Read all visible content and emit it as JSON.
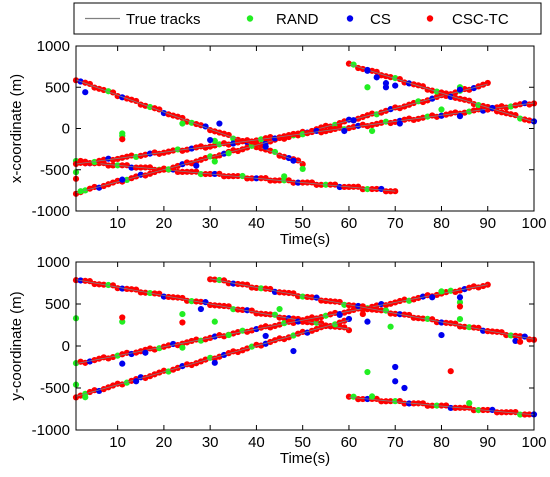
{
  "legend": {
    "entries": [
      {
        "label": "True tracks",
        "marker": "line",
        "color": "#808080"
      },
      {
        "label": "RAND",
        "marker": "dot",
        "color": "#22ee22"
      },
      {
        "label": "CS",
        "marker": "dot",
        "color": "#0000ee"
      },
      {
        "label": "CSC-TC",
        "marker": "dot",
        "color": "#ff0000"
      }
    ]
  },
  "chart_data": [
    {
      "type": "scatter",
      "xlabel": "Time(s)",
      "ylabel": "x-coordinate (m)",
      "xlim": [
        1,
        100
      ],
      "ylim": [
        -1000,
        1000
      ],
      "xticks": [
        10,
        20,
        30,
        40,
        50,
        60,
        70,
        80,
        90,
        100
      ],
      "yticks": [
        -1000,
        -500,
        0,
        500,
        1000
      ],
      "grid": false,
      "tracks": [
        {
          "t": [
            1,
            50
          ],
          "v": [
            590,
            -420
          ]
        },
        {
          "t": [
            1,
            70
          ],
          "v": [
            -400,
            -760
          ]
        },
        {
          "t": [
            1,
            90
          ],
          "v": [
            -780,
            540
          ]
        },
        {
          "t": [
            1,
            100
          ],
          "v": [
            -430,
            310
          ]
        },
        {
          "t": [
            60,
            100
          ],
          "v": [
            780,
            80
          ]
        }
      ],
      "series": [
        {
          "name": "RAND",
          "points": [
            [
              1,
              -530
            ],
            [
              2,
              -760
            ],
            [
              11,
              -60
            ],
            [
              11,
              -90
            ],
            [
              24,
              60
            ],
            [
              31,
              -150
            ],
            [
              31,
              -400
            ],
            [
              34,
              -300
            ],
            [
              46,
              -580
            ],
            [
              50,
              -490
            ],
            [
              64,
              500
            ],
            [
              65,
              -30
            ],
            [
              80,
              230
            ],
            [
              84,
              500
            ]
          ]
        },
        {
          "name": "CS",
          "points": [
            [
              3,
              440
            ],
            [
              11,
              -620
            ],
            [
              27,
              -450
            ],
            [
              30,
              -140
            ],
            [
              32,
              60
            ],
            [
              42,
              -220
            ],
            [
              48,
              -390
            ],
            [
              59,
              -30
            ],
            [
              61,
              100
            ],
            [
              64,
              700
            ],
            [
              66,
              620
            ],
            [
              68,
              550
            ],
            [
              68,
              500
            ],
            [
              70,
              520
            ],
            [
              71,
              60
            ],
            [
              84,
              470
            ],
            [
              84,
              150
            ]
          ]
        },
        {
          "name": "CSC-TC",
          "points": [
            [
              1,
              -610
            ],
            [
              11,
              -130
            ]
          ]
        }
      ]
    },
    {
      "type": "scatter",
      "xlabel": "Time(s)",
      "ylabel": "y-coordinate (m)",
      "xlim": [
        1,
        100
      ],
      "ylim": [
        -1000,
        1000
      ],
      "xticks": [
        10,
        20,
        30,
        40,
        50,
        60,
        70,
        80,
        90,
        100
      ],
      "yticks": [
        -1000,
        -500,
        0,
        500,
        1000
      ],
      "grid": false,
      "tracks": [
        {
          "t": [
            1,
            60
          ],
          "v": [
            790,
            200
          ]
        },
        {
          "t": [
            1,
            90
          ],
          "v": [
            -210,
            730
          ]
        },
        {
          "t": [
            1,
            60
          ],
          "v": [
            -600,
            310
          ]
        },
        {
          "t": [
            30,
            100
          ],
          "v": [
            800,
            80
          ]
        },
        {
          "t": [
            60,
            100
          ],
          "v": [
            -610,
            -820
          ]
        }
      ],
      "series": [
        {
          "name": "RAND",
          "points": [
            [
              1,
              330
            ],
            [
              1,
              -460
            ],
            [
              3,
              -610
            ],
            [
              11,
              290
            ],
            [
              24,
              380
            ],
            [
              24,
              -20
            ],
            [
              31,
              290
            ],
            [
              34,
              130
            ],
            [
              45,
              440
            ],
            [
              64,
              -310
            ],
            [
              65,
              -600
            ],
            [
              69,
              230
            ],
            [
              80,
              650
            ],
            [
              84,
              520
            ],
            [
              84,
              320
            ],
            [
              86,
              -680
            ]
          ]
        },
        {
          "name": "CS",
          "points": [
            [
              11,
              -210
            ],
            [
              14,
              -420
            ],
            [
              16,
              -80
            ],
            [
              28,
              440
            ],
            [
              31,
              -200
            ],
            [
              42,
              120
            ],
            [
              48,
              -60
            ],
            [
              58,
              370
            ],
            [
              64,
              290
            ],
            [
              70,
              -250
            ],
            [
              70,
              -420
            ],
            [
              72,
              -500
            ],
            [
              78,
              580
            ],
            [
              80,
              130
            ],
            [
              84,
              580
            ],
            [
              96,
              60
            ]
          ]
        },
        {
          "name": "CSC-TC",
          "points": [
            [
              11,
              340
            ],
            [
              24,
              280
            ],
            [
              63,
              380
            ],
            [
              82,
              -300
            ],
            [
              84,
              470
            ],
            [
              97,
              50
            ]
          ]
        }
      ]
    }
  ]
}
